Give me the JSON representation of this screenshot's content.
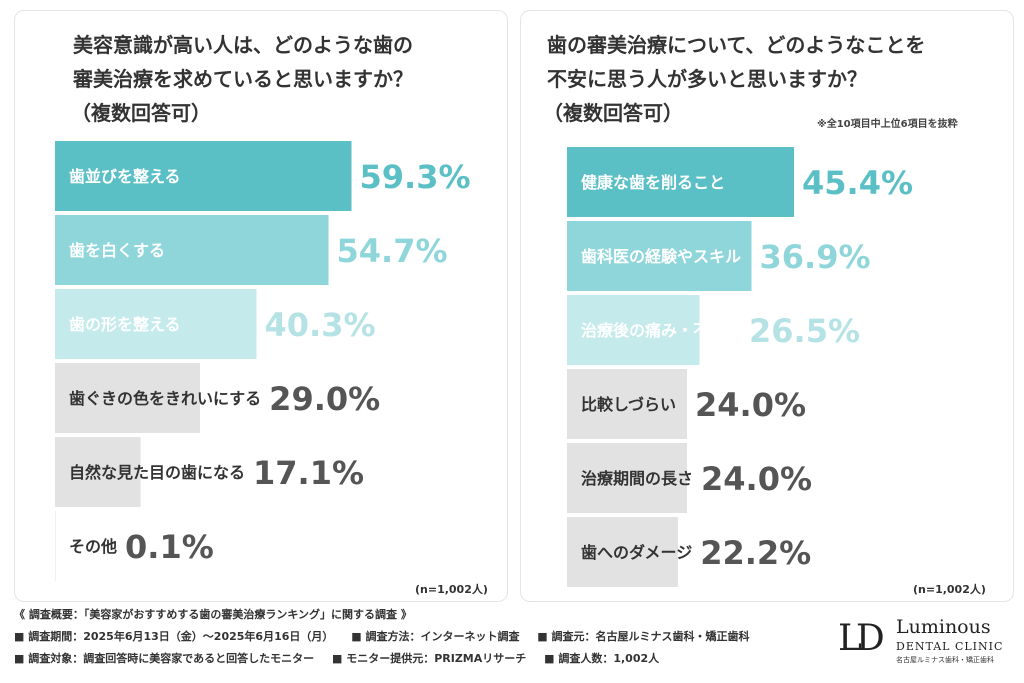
{
  "left": {
    "title_lines": [
      "美容意識が高い人は、どのような歯の",
      "審美治療を求めていると思いますか？",
      "（複数回答可）"
    ],
    "n_label": "(n=1,002人)"
  },
  "right": {
    "title_lines": [
      "歯の審美治療について、どのようなことを",
      "不安に思う人が多いと思いますか？",
      "（複数回答可）"
    ],
    "note": "※全10項目中上位6項目を抜粋",
    "n_label": "(n=1,002人)"
  },
  "chart_data": [
    {
      "type": "bar",
      "orientation": "horizontal",
      "title": "美容意識が高い人は、どのような歯の審美治療を求めていると思いますか？（複数回答可）",
      "categories": [
        "歯並びを整える",
        "歯を白くする",
        "歯の形を整える",
        "歯ぐきの色をきれいにする",
        "自然な見た目の歯になる",
        "その他"
      ],
      "values": [
        59.3,
        54.7,
        40.3,
        29.0,
        17.1,
        0.1
      ],
      "value_labels": [
        "59.3%",
        "54.7%",
        "40.3%",
        "29.0%",
        "17.1%",
        "0.1%"
      ],
      "unit": "%",
      "xlim": [
        0,
        100
      ],
      "colors": [
        "#5bbfc6",
        "#8fd6da",
        "#c4eaec",
        "#e2e2e2",
        "#e2e2e2",
        "#e2e2e2"
      ],
      "label_colors": [
        "#5bbfc6",
        "#8fd6da",
        "#b5e2e5",
        "#555555",
        "#555555",
        "#555555"
      ]
    },
    {
      "type": "bar",
      "orientation": "horizontal",
      "title": "歯の審美治療について、どのようなことを不安に思う人が多いと思いますか？（複数回答可）",
      "categories": [
        "健康な歯を削ること",
        "歯科医の経験やスキル",
        "治療後の痛み・不快感",
        "比較しづらい",
        "治療期間の長さ",
        "歯へのダメージ"
      ],
      "values": [
        45.4,
        36.9,
        26.5,
        24.0,
        24.0,
        22.2
      ],
      "value_labels": [
        "45.4%",
        "36.9%",
        "26.5%",
        "24.0%",
        "24.0%",
        "22.2%"
      ],
      "unit": "%",
      "xlim": [
        0,
        100
      ],
      "colors": [
        "#5bbfc6",
        "#8fd6da",
        "#c4eaec",
        "#e2e2e2",
        "#e2e2e2",
        "#e2e2e2"
      ],
      "label_colors": [
        "#5bbfc6",
        "#8fd6da",
        "#b5e2e5",
        "#555555",
        "#555555",
        "#555555"
      ]
    }
  ],
  "footer": {
    "summary": "《 調査概要：「美容家がおすすめする歯の審美治療ランキング」に関する調査 》",
    "row1": [
      "■ 調査期間：2025年6月13日（金）～2025年6月16日（月）",
      "■ 調査方法：インターネット調査",
      "■ 調査元：名古屋ルミナス歯科・矯正歯科"
    ],
    "row2": [
      "■ 調査対象：調査回答時に美容家であると回答したモニター",
      "■ モニター提供元：PRIZMAリサーチ",
      "■ 調査人数：1,002人"
    ]
  },
  "logo": {
    "mark": "LD",
    "name": "Luminous",
    "subtitle": "DENTAL CLINIC",
    "jp": "名古屋ルミナス歯科・矯正歯科"
  }
}
